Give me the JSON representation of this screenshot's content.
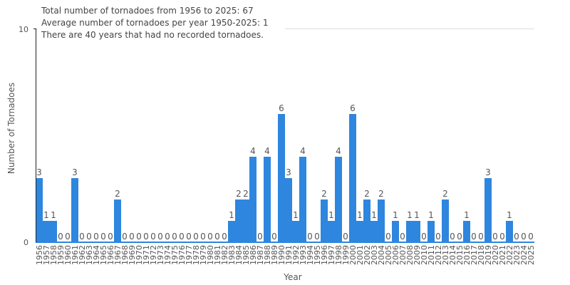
{
  "chart_data": {
    "type": "bar",
    "xlabel": "Year",
    "ylabel": "Number of Tornadoes",
    "ylim": [
      0,
      10
    ],
    "yticks": [
      "0",
      "10"
    ],
    "grid": true,
    "bar_color": "#2e86de",
    "annotations": [
      "Total number of tornadoes from 1956 to 2025: 67",
      "Average number of tornadoes per year 1950-2025: 1",
      "There are 40 years that had no recorded tornadoes."
    ],
    "categories": [
      "1956",
      "1957",
      "1958",
      "1959",
      "1960",
      "1961",
      "1962",
      "1963",
      "1964",
      "1965",
      "1966",
      "1967",
      "1968",
      "1969",
      "1970",
      "1971",
      "1972",
      "1973",
      "1974",
      "1975",
      "1976",
      "1977",
      "1978",
      "1979",
      "1980",
      "1981",
      "1982",
      "1983",
      "1984",
      "1985",
      "1986",
      "1987",
      "1988",
      "1989",
      "1990",
      "1991",
      "1992",
      "1993",
      "1994",
      "1995",
      "1996",
      "1997",
      "1998",
      "1999",
      "2000",
      "2001",
      "2002",
      "2003",
      "2004",
      "2005",
      "2006",
      "2007",
      "2008",
      "2009",
      "2010",
      "2011",
      "2012",
      "2013",
      "2014",
      "2015",
      "2016",
      "2017",
      "2018",
      "2019",
      "2020",
      "2021",
      "2022",
      "2023",
      "2024",
      "2025"
    ],
    "values": [
      3,
      1,
      1,
      0,
      0,
      3,
      0,
      0,
      0,
      0,
      0,
      2,
      0,
      0,
      0,
      0,
      0,
      0,
      0,
      0,
      0,
      0,
      0,
      0,
      0,
      0,
      0,
      1,
      2,
      2,
      4,
      0,
      4,
      0,
      6,
      3,
      1,
      4,
      0,
      0,
      2,
      1,
      4,
      0,
      6,
      1,
      2,
      1,
      2,
      0,
      1,
      0,
      1,
      1,
      0,
      1,
      0,
      2,
      0,
      0,
      1,
      0,
      0,
      3,
      0,
      0,
      1,
      0,
      0,
      0
    ]
  }
}
